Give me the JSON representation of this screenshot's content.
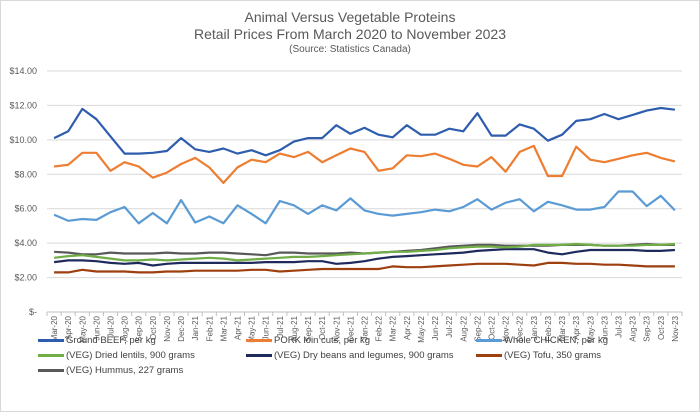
{
  "chart_data": {
    "type": "line",
    "title": "Animal Versus Vegetable Proteins",
    "subtitle": "Retail Prices From March 2020 to November 2023",
    "source": "(Source: Statistics Canada)",
    "xlabel": "",
    "ylabel": "",
    "ylim": [
      0,
      14
    ],
    "yticks": [
      "$-",
      "$2.00",
      "$4.00",
      "$6.00",
      "$8.00",
      "$10.00",
      "$12.00",
      "$14.00"
    ],
    "grid": true,
    "legend_position": "bottom",
    "categories": [
      "Mar-20",
      "Apr-20",
      "May-20",
      "Jun-20",
      "Jul-20",
      "Aug-20",
      "Sep-20",
      "Oct-20",
      "Nov-20",
      "Dec-20",
      "Jan-21",
      "Feb-21",
      "Mar-21",
      "Apr-21",
      "May-21",
      "Jun-21",
      "Jul-21",
      "Aug-21",
      "Sep-21",
      "Oct-21",
      "Nov-21",
      "Dec-21",
      "Jan-22",
      "Feb-22",
      "Mar-22",
      "Apr-22",
      "May-22",
      "Jun-22",
      "Jul-22",
      "Aug-22",
      "Sep-22",
      "Oct-22",
      "Nov-22",
      "Dec-22",
      "Jan-23",
      "Feb-23",
      "Mar-23",
      "Apr-23",
      "May-23",
      "Jun-23",
      "Jul-23",
      "Aug-23",
      "Sep-23",
      "Oct-23",
      "Nov-23"
    ],
    "series": [
      {
        "name": "Ground BEEF, per kg",
        "color": "#2E5DAE",
        "values": [
          10.1,
          10.5,
          11.8,
          11.2,
          10.2,
          9.2,
          9.2,
          9.25,
          9.35,
          10.1,
          9.45,
          9.3,
          9.5,
          9.2,
          9.4,
          9.1,
          9.4,
          9.9,
          10.1,
          10.1,
          10.85,
          10.35,
          10.7,
          10.3,
          10.15,
          10.85,
          10.3,
          10.3,
          10.65,
          10.5,
          11.55,
          10.25,
          10.25,
          10.9,
          10.65,
          9.95,
          10.3,
          11.1,
          11.2,
          11.5,
          11.2,
          11.45,
          11.7,
          11.85,
          11.75
        ]
      },
      {
        "name": "PORK loin cuts, per kg",
        "color": "#ED7D31",
        "values": [
          8.45,
          8.55,
          9.25,
          9.25,
          8.2,
          8.7,
          8.45,
          7.8,
          8.1,
          8.6,
          8.95,
          8.4,
          7.5,
          8.4,
          8.85,
          8.7,
          9.2,
          9.0,
          9.3,
          8.7,
          9.1,
          9.5,
          9.3,
          8.2,
          8.35,
          9.1,
          9.05,
          9.2,
          8.9,
          8.55,
          8.45,
          9.0,
          8.15,
          9.3,
          9.65,
          7.9,
          7.9,
          9.6,
          8.85,
          8.7,
          8.9,
          9.1,
          9.25,
          8.95,
          8.75
        ]
      },
      {
        "name": "Whole CHICKEN, per kg",
        "color": "#5B9BD5",
        "values": [
          5.65,
          5.3,
          5.4,
          5.35,
          5.8,
          6.1,
          5.15,
          5.75,
          5.15,
          6.5,
          5.2,
          5.55,
          5.15,
          6.2,
          5.7,
          5.15,
          6.45,
          6.2,
          5.7,
          6.2,
          5.9,
          6.6,
          5.9,
          5.7,
          5.6,
          5.7,
          5.8,
          5.95,
          5.85,
          6.1,
          6.55,
          5.95,
          6.35,
          6.55,
          5.85,
          6.4,
          6.2,
          5.95,
          5.95,
          6.1,
          7.0,
          7.0,
          6.15,
          6.75,
          5.9
        ]
      },
      {
        "name": "(VEG) Dried lentils, 900 grams",
        "color": "#70AD47",
        "values": [
          3.15,
          3.25,
          3.3,
          3.2,
          3.1,
          3.0,
          3.0,
          3.05,
          3.0,
          3.05,
          3.1,
          3.15,
          3.1,
          3.0,
          3.05,
          3.1,
          3.15,
          3.2,
          3.2,
          3.25,
          3.3,
          3.35,
          3.4,
          3.45,
          3.5,
          3.5,
          3.55,
          3.6,
          3.7,
          3.75,
          3.8,
          3.8,
          3.75,
          3.8,
          3.9,
          3.9,
          3.9,
          3.95,
          3.9,
          3.85,
          3.85,
          3.85,
          3.9,
          3.9,
          3.95
        ]
      },
      {
        "name": "(VEG) Dry beans and legumes, 900 grams",
        "color": "#1F2A5C",
        "values": [
          2.9,
          3.0,
          3.0,
          2.95,
          2.85,
          2.8,
          2.85,
          2.7,
          2.8,
          2.85,
          2.85,
          2.85,
          2.85,
          2.85,
          2.85,
          2.9,
          2.9,
          2.9,
          2.95,
          2.95,
          2.8,
          2.85,
          2.95,
          3.1,
          3.2,
          3.25,
          3.3,
          3.35,
          3.4,
          3.45,
          3.55,
          3.6,
          3.65,
          3.65,
          3.65,
          3.45,
          3.35,
          3.5,
          3.6,
          3.6,
          3.6,
          3.6,
          3.55,
          3.55,
          3.6
        ]
      },
      {
        "name": "(VEG) Tofu, 350 grams",
        "color": "#9E3F0F",
        "values": [
          2.3,
          2.3,
          2.45,
          2.35,
          2.35,
          2.35,
          2.3,
          2.3,
          2.35,
          2.35,
          2.4,
          2.4,
          2.4,
          2.4,
          2.45,
          2.45,
          2.35,
          2.4,
          2.45,
          2.5,
          2.5,
          2.5,
          2.5,
          2.5,
          2.65,
          2.6,
          2.6,
          2.65,
          2.7,
          2.75,
          2.8,
          2.8,
          2.8,
          2.75,
          2.7,
          2.85,
          2.85,
          2.8,
          2.8,
          2.75,
          2.75,
          2.7,
          2.65,
          2.65,
          2.65
        ]
      },
      {
        "name": "(VEG) Hummus, 227 grams",
        "color": "#595959",
        "values": [
          3.5,
          3.45,
          3.35,
          3.35,
          3.45,
          3.4,
          3.4,
          3.4,
          3.45,
          3.4,
          3.4,
          3.45,
          3.45,
          3.4,
          3.35,
          3.3,
          3.45,
          3.45,
          3.4,
          3.4,
          3.4,
          3.45,
          3.4,
          3.45,
          3.5,
          3.55,
          3.6,
          3.7,
          3.8,
          3.85,
          3.9,
          3.9,
          3.85,
          3.85,
          3.85,
          3.85,
          3.9,
          3.9,
          3.9,
          3.85,
          3.85,
          3.9,
          3.95,
          3.9,
          3.9
        ]
      }
    ]
  }
}
